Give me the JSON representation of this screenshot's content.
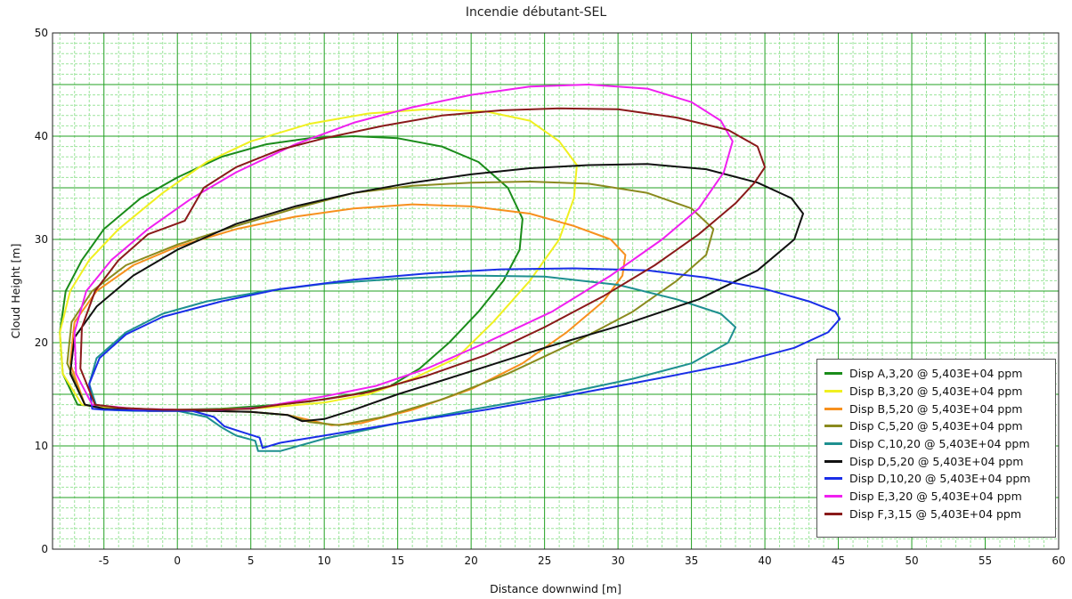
{
  "chart_data": {
    "type": "line",
    "title": "Incendie débutant-SEL",
    "xlabel": "Distance downwind [m]",
    "ylabel": "Cloud Height [m]",
    "xlim": [
      -8.5,
      60
    ],
    "ylim": [
      0,
      50
    ],
    "x_ticks": [
      -5,
      0,
      5,
      10,
      15,
      20,
      25,
      30,
      35,
      40,
      45,
      50,
      55,
      60
    ],
    "y_ticks": [
      0,
      10,
      20,
      30,
      40,
      50
    ],
    "grid": true,
    "minor_grid": true,
    "legend_position": "bottom-right",
    "series": [
      {
        "name": "Disp A,3,20 @ 5,403E+04 ppm",
        "color": "#1a8c1a",
        "points": [
          [
            -6.8,
            14
          ],
          [
            -7.8,
            17
          ],
          [
            -8.0,
            21
          ],
          [
            -7.6,
            25
          ],
          [
            -6.5,
            28
          ],
          [
            -5.0,
            31
          ],
          [
            -2.5,
            34
          ],
          [
            0,
            36
          ],
          [
            3,
            38
          ],
          [
            6,
            39.2
          ],
          [
            9,
            39.8
          ],
          [
            12,
            40
          ],
          [
            15,
            39.8
          ],
          [
            18,
            39
          ],
          [
            20.5,
            37.5
          ],
          [
            22.5,
            35
          ],
          [
            23.5,
            32
          ],
          [
            23.3,
            29
          ],
          [
            22.2,
            26
          ],
          [
            20.5,
            23
          ],
          [
            18.5,
            20
          ],
          [
            16.5,
            17.5
          ],
          [
            14.5,
            15.8
          ],
          [
            12,
            15
          ],
          [
            9,
            14.3
          ],
          [
            6,
            13.9
          ],
          [
            3,
            13.6
          ],
          [
            0,
            13.5
          ],
          [
            -3,
            13.6
          ],
          [
            -6,
            13.9
          ],
          [
            -6.8,
            14
          ]
        ]
      },
      {
        "name": "Disp B,3,20 @ 5,403E+04 ppm",
        "color": "#f0f020",
        "points": [
          [
            -6.5,
            14
          ],
          [
            -7.8,
            17
          ],
          [
            -8.0,
            21
          ],
          [
            -7.3,
            25
          ],
          [
            -6,
            28
          ],
          [
            -4,
            31
          ],
          [
            -1,
            34.5
          ],
          [
            2,
            37.5
          ],
          [
            5,
            39.5
          ],
          [
            9,
            41.2
          ],
          [
            13,
            42.2
          ],
          [
            17,
            42.6
          ],
          [
            21,
            42.4
          ],
          [
            24,
            41.5
          ],
          [
            26,
            39.5
          ],
          [
            27.2,
            37.2
          ],
          [
            27,
            34
          ],
          [
            26,
            30
          ],
          [
            24,
            26
          ],
          [
            21.5,
            22
          ],
          [
            19,
            18.5
          ],
          [
            16,
            16.5
          ],
          [
            13,
            15
          ],
          [
            10,
            14.2
          ],
          [
            6,
            13.7
          ],
          [
            2,
            13.5
          ],
          [
            -2,
            13.5
          ],
          [
            -5,
            13.7
          ],
          [
            -6.5,
            14
          ]
        ]
      },
      {
        "name": "Disp B,5,20 @ 5,403E+04 ppm",
        "color": "#f7901e",
        "points": [
          [
            -6.3,
            14
          ],
          [
            -7.3,
            18
          ],
          [
            -7,
            22
          ],
          [
            -5.5,
            25
          ],
          [
            -3,
            27.5
          ],
          [
            0,
            29.3
          ],
          [
            4,
            31
          ],
          [
            8,
            32.2
          ],
          [
            12,
            33
          ],
          [
            16,
            33.4
          ],
          [
            20,
            33.2
          ],
          [
            24,
            32.5
          ],
          [
            27,
            31.3
          ],
          [
            29.5,
            30
          ],
          [
            30.5,
            28.5
          ],
          [
            30.3,
            26.5
          ],
          [
            29,
            24
          ],
          [
            26.5,
            21
          ],
          [
            23.5,
            18
          ],
          [
            20,
            15.5
          ],
          [
            16,
            13.5
          ],
          [
            12.5,
            12.2
          ],
          [
            10.5,
            12
          ],
          [
            9,
            12.5
          ],
          [
            7.5,
            13
          ],
          [
            5,
            13.3
          ],
          [
            2,
            13.4
          ],
          [
            -2,
            13.4
          ],
          [
            -5,
            13.6
          ],
          [
            -6.3,
            14
          ]
        ]
      },
      {
        "name": "Disp C,5,20 @ 5,403E+04 ppm",
        "color": "#8a8a1e",
        "points": [
          [
            -6.3,
            14
          ],
          [
            -7.5,
            18
          ],
          [
            -7.2,
            22
          ],
          [
            -5.8,
            25
          ],
          [
            -3.5,
            27.5
          ],
          [
            0,
            29.5
          ],
          [
            4,
            31.3
          ],
          [
            8,
            33
          ],
          [
            12,
            34.5
          ],
          [
            16,
            35.2
          ],
          [
            20,
            35.5
          ],
          [
            24,
            35.6
          ],
          [
            28,
            35.4
          ],
          [
            32,
            34.5
          ],
          [
            35,
            33
          ],
          [
            36.5,
            31
          ],
          [
            36,
            28.5
          ],
          [
            34,
            26
          ],
          [
            31,
            23
          ],
          [
            27,
            20
          ],
          [
            22.5,
            17
          ],
          [
            18,
            14.5
          ],
          [
            14,
            12.8
          ],
          [
            11,
            12
          ],
          [
            9,
            12.3
          ],
          [
            7.5,
            13
          ],
          [
            5,
            13.3
          ],
          [
            2,
            13.4
          ],
          [
            -2,
            13.4
          ],
          [
            -5,
            13.6
          ],
          [
            -6.3,
            14
          ]
        ]
      },
      {
        "name": "Disp C,10,20 @ 5,403E+04 ppm",
        "color": "#1e9090",
        "points": [
          [
            -5.5,
            13.8
          ],
          [
            -6,
            16
          ],
          [
            -5.5,
            18.5
          ],
          [
            -3.5,
            21
          ],
          [
            -1,
            22.8
          ],
          [
            2,
            24
          ],
          [
            6,
            25
          ],
          [
            10,
            25.7
          ],
          [
            15,
            26.2
          ],
          [
            20,
            26.5
          ],
          [
            25,
            26.4
          ],
          [
            30,
            25.6
          ],
          [
            34,
            24.2
          ],
          [
            37,
            22.8
          ],
          [
            38,
            21.5
          ],
          [
            37.5,
            20
          ],
          [
            35,
            18
          ],
          [
            31,
            16.5
          ],
          [
            26,
            15
          ],
          [
            20,
            13.5
          ],
          [
            15,
            12.2
          ],
          [
            10,
            10.7
          ],
          [
            7,
            9.5
          ],
          [
            5.5,
            9.5
          ],
          [
            5.3,
            10.5
          ],
          [
            4,
            11
          ],
          [
            3,
            11.8
          ],
          [
            2,
            12.8
          ],
          [
            0,
            13.4
          ],
          [
            -3,
            13.4
          ],
          [
            -5,
            13.5
          ],
          [
            -5.5,
            13.8
          ]
        ]
      },
      {
        "name": "Disp D,5,20 @ 5,403E+04 ppm",
        "color": "#111111",
        "points": [
          [
            -6.3,
            14
          ],
          [
            -7.3,
            17
          ],
          [
            -7,
            20.5
          ],
          [
            -5.5,
            23.5
          ],
          [
            -3,
            26.5
          ],
          [
            0,
            29
          ],
          [
            4,
            31.5
          ],
          [
            8,
            33.2
          ],
          [
            12,
            34.5
          ],
          [
            16,
            35.5
          ],
          [
            20,
            36.3
          ],
          [
            24,
            36.9
          ],
          [
            28,
            37.2
          ],
          [
            32,
            37.3
          ],
          [
            36,
            36.8
          ],
          [
            39.5,
            35.5
          ],
          [
            41.8,
            34
          ],
          [
            42.6,
            32.5
          ],
          [
            42,
            30
          ],
          [
            39.5,
            27
          ],
          [
            35.5,
            24.2
          ],
          [
            30.5,
            21.8
          ],
          [
            25,
            19.5
          ],
          [
            19.5,
            17
          ],
          [
            15,
            15
          ],
          [
            12,
            13.5
          ],
          [
            10,
            12.6
          ],
          [
            8.5,
            12.4
          ],
          [
            7.5,
            13
          ],
          [
            5,
            13.3
          ],
          [
            2,
            13.4
          ],
          [
            -2,
            13.4
          ],
          [
            -5,
            13.6
          ],
          [
            -6.3,
            14
          ]
        ]
      },
      {
        "name": "Disp D,10,20 @ 5,403E+04 ppm",
        "color": "#1a2ee8",
        "points": [
          [
            -5.8,
            13.6
          ],
          [
            -6,
            16
          ],
          [
            -5.3,
            18.5
          ],
          [
            -3.5,
            20.8
          ],
          [
            -1,
            22.5
          ],
          [
            3,
            24
          ],
          [
            7,
            25.2
          ],
          [
            12,
            26.1
          ],
          [
            17,
            26.7
          ],
          [
            22,
            27.1
          ],
          [
            27,
            27.2
          ],
          [
            32,
            27
          ],
          [
            36,
            26.3
          ],
          [
            40,
            25.2
          ],
          [
            43,
            24
          ],
          [
            44.8,
            23
          ],
          [
            45.1,
            22.3
          ],
          [
            44.3,
            21
          ],
          [
            42,
            19.5
          ],
          [
            38,
            18
          ],
          [
            33,
            16.6
          ],
          [
            27,
            15
          ],
          [
            21,
            13.5
          ],
          [
            15,
            12.2
          ],
          [
            10,
            11
          ],
          [
            7,
            10.3
          ],
          [
            5.8,
            9.8
          ],
          [
            5.6,
            10.8
          ],
          [
            4.5,
            11.3
          ],
          [
            3.2,
            11.9
          ],
          [
            2.5,
            12.8
          ],
          [
            1,
            13.4
          ],
          [
            -2,
            13.4
          ],
          [
            -5,
            13.5
          ],
          [
            -5.8,
            13.6
          ]
        ]
      },
      {
        "name": "Disp E,3,20 @ 5,403E+04 ppm",
        "color": "#f020f0",
        "points": [
          [
            -5.8,
            14
          ],
          [
            -6.9,
            17
          ],
          [
            -7,
            21
          ],
          [
            -6.2,
            25
          ],
          [
            -4.5,
            28
          ],
          [
            -2,
            31
          ],
          [
            1,
            34
          ],
          [
            4,
            36.5
          ],
          [
            8,
            39.2
          ],
          [
            12,
            41.3
          ],
          [
            16,
            42.8
          ],
          [
            20,
            44
          ],
          [
            24,
            44.8
          ],
          [
            28,
            45
          ],
          [
            32,
            44.6
          ],
          [
            35,
            43.3
          ],
          [
            37,
            41.5
          ],
          [
            37.8,
            39.5
          ],
          [
            37.2,
            36.5
          ],
          [
            35.5,
            33
          ],
          [
            33,
            30
          ],
          [
            29.5,
            26.5
          ],
          [
            25.5,
            23
          ],
          [
            21,
            20
          ],
          [
            17,
            17.5
          ],
          [
            13.5,
            15.8
          ],
          [
            10,
            14.8
          ],
          [
            7.5,
            14.2
          ],
          [
            5.5,
            13.7
          ],
          [
            3,
            13.5
          ],
          [
            0,
            13.5
          ],
          [
            -3,
            13.6
          ],
          [
            -5.8,
            14
          ]
        ]
      },
      {
        "name": "Disp F,3,15 @ 5,403E+04 ppm",
        "color": "#8a1a1a",
        "points": [
          [
            -5.6,
            14
          ],
          [
            -6.6,
            17.5
          ],
          [
            -6.5,
            21.5
          ],
          [
            -5.6,
            25
          ],
          [
            -4,
            28
          ],
          [
            -2,
            30.5
          ],
          [
            0.5,
            31.8
          ],
          [
            1.8,
            35
          ],
          [
            4,
            37
          ],
          [
            7,
            38.7
          ],
          [
            10,
            39.8
          ],
          [
            14,
            41
          ],
          [
            18,
            42
          ],
          [
            22,
            42.5
          ],
          [
            26,
            42.7
          ],
          [
            30,
            42.6
          ],
          [
            34,
            41.8
          ],
          [
            37.5,
            40.6
          ],
          [
            39.5,
            39
          ],
          [
            40,
            37
          ],
          [
            39.3,
            35.5
          ],
          [
            38,
            33.5
          ],
          [
            35.5,
            30.5
          ],
          [
            32.5,
            27.5
          ],
          [
            29,
            24.5
          ],
          [
            25,
            21.5
          ],
          [
            21,
            18.8
          ],
          [
            17,
            16.8
          ],
          [
            13,
            15.2
          ],
          [
            10,
            14.5
          ],
          [
            7,
            14
          ],
          [
            5,
            13.6
          ],
          [
            2,
            13.5
          ],
          [
            -1,
            13.5
          ],
          [
            -4,
            13.7
          ],
          [
            -5.6,
            14
          ]
        ]
      }
    ]
  }
}
